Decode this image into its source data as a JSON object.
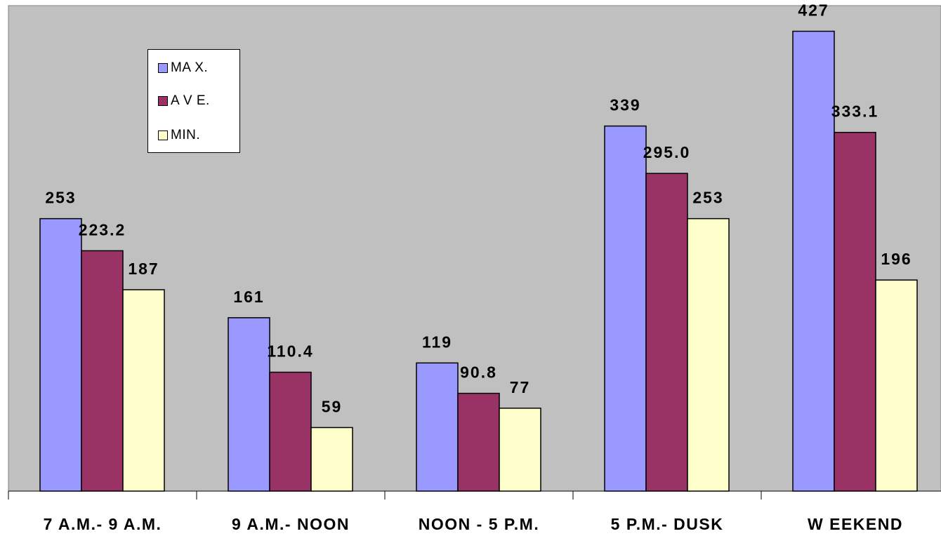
{
  "chart_data": {
    "type": "bar",
    "categories": [
      "7 A.M.- 9 A.M.",
      "9 A.M.- NOON",
      "NOON - 5 P.M.",
      "5 P.M.- DUSK",
      "W EEKEND"
    ],
    "series": [
      {
        "name": "MA X.",
        "values": [
          253,
          161,
          119,
          339,
          427
        ],
        "labels": [
          "253",
          "161",
          "119",
          "339",
          "427"
        ],
        "color": "#9999ff"
      },
      {
        "name": "A V E.",
        "values": [
          223.2,
          110.4,
          90.8,
          295.0,
          333.1
        ],
        "labels": [
          "223.2",
          "110.4",
          "90.8",
          "295.0",
          "333.1"
        ],
        "color": "#993366"
      },
      {
        "name": "MIN.",
        "values": [
          187,
          59,
          77,
          253,
          196
        ],
        "labels": [
          "187",
          "59",
          "77",
          "253",
          "196"
        ],
        "color": "#ffffcc"
      }
    ],
    "ylim": [
      0,
      440
    ],
    "grid": false,
    "legend": "top-left",
    "plot_background": "#c0c0c0"
  }
}
